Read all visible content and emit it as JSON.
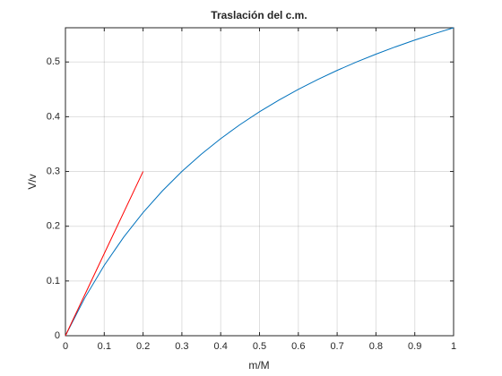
{
  "chart_data": {
    "type": "line",
    "title": "Traslación del c.m.",
    "xlabel": "m/M",
    "ylabel": "V/v",
    "series": [
      {
        "color": "#0072bd",
        "x": [
          0,
          0.05,
          0.1,
          0.15,
          0.2,
          0.25,
          0.3,
          0.35,
          0.4,
          0.45,
          0.5,
          0.55,
          0.6,
          0.65,
          0.7,
          0.75,
          0.8,
          0.85,
          0.9,
          0.95,
          1
        ],
        "values": [
          0,
          0.0692,
          0.1286,
          0.18,
          0.225,
          0.2647,
          0.3,
          0.3316,
          0.36,
          0.3857,
          0.4091,
          0.4304,
          0.45,
          0.468,
          0.4846,
          0.5,
          0.5143,
          0.5276,
          0.54,
          0.5516,
          0.5625
        ]
      },
      {
        "color": "#ff0000",
        "x": [
          0,
          0.2
        ],
        "values": [
          0,
          0.3
        ]
      }
    ],
    "xlim": [
      0,
      1
    ],
    "ylim": [
      0,
      0.5625
    ],
    "xticks": [
      0,
      0.1,
      0.2,
      0.3,
      0.4,
      0.5,
      0.6,
      0.7,
      0.8,
      0.9,
      1
    ],
    "yticks": [
      0,
      0.1,
      0.2,
      0.3,
      0.4,
      0.5
    ],
    "grid": true
  }
}
